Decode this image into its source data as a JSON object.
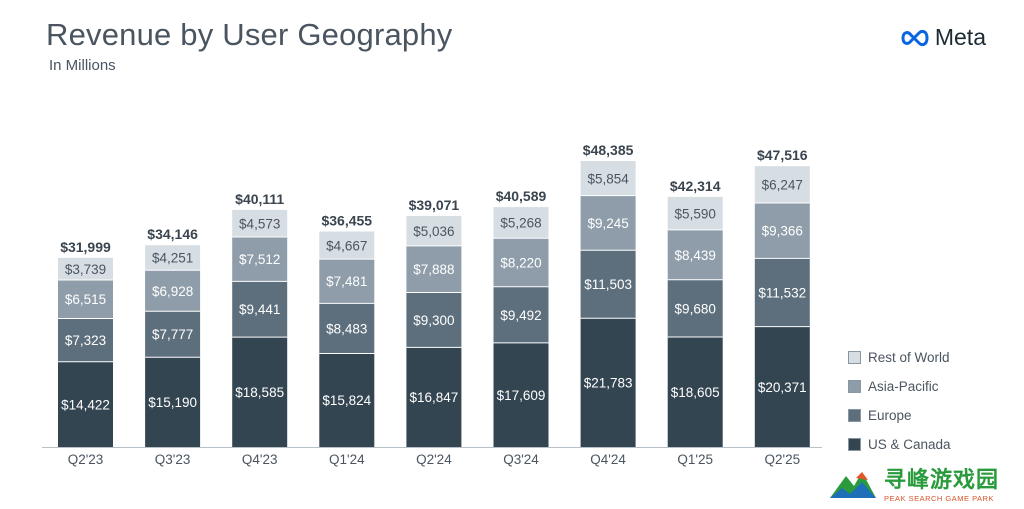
{
  "header": {
    "title": "Revenue by User Geography",
    "subtitle": "In Millions",
    "logo_text": "Meta"
  },
  "watermark": {
    "text": "寻峰游戏园",
    "subtext": "PEAK SEARCH GAME PARK"
  },
  "colors": {
    "us_canada": "#344552",
    "europe": "#5d6f7c",
    "asia_pacific": "#8e9da9",
    "rest_of_world": "#d7dee3",
    "text_dark": "#4a5560"
  },
  "legend": [
    {
      "label": "Rest of World",
      "color_key": "rest_of_world"
    },
    {
      "label": "Asia-Pacific",
      "color_key": "asia_pacific"
    },
    {
      "label": "Europe",
      "color_key": "europe"
    },
    {
      "label": "US & Canada",
      "color_key": "us_canada"
    }
  ],
  "chart_data": {
    "type": "bar",
    "stacked": true,
    "categories": [
      "Q2'23",
      "Q3'23",
      "Q4'23",
      "Q1'24",
      "Q2'24",
      "Q3'24",
      "Q4'24",
      "Q1'25",
      "Q2'25"
    ],
    "series": [
      {
        "name": "US & Canada",
        "values": [
          14422,
          15190,
          18585,
          15824,
          16847,
          17609,
          21783,
          18605,
          20371
        ]
      },
      {
        "name": "Europe",
        "values": [
          7323,
          7777,
          9441,
          8483,
          9300,
          9492,
          11503,
          9680,
          11532
        ]
      },
      {
        "name": "Asia-Pacific",
        "values": [
          6515,
          6928,
          7512,
          7481,
          7888,
          8220,
          9245,
          8439,
          9366
        ]
      },
      {
        "name": "Rest of World",
        "values": [
          3739,
          4251,
          4573,
          4667,
          5036,
          5268,
          5854,
          5590,
          6247
        ]
      }
    ],
    "totals": [
      31999,
      34146,
      40111,
      36455,
      39071,
      40589,
      48385,
      42314,
      47516
    ],
    "value_labels": [
      [
        "$14,422",
        "$15,190",
        "$18,585",
        "$15,824",
        "$16,847",
        "$17,609",
        "$21,783",
        "$18,605",
        "$20,371"
      ],
      [
        "$7,323",
        "$7,777",
        "$9,441",
        "$8,483",
        "$9,300",
        "$9,492",
        "$11,503",
        "$9,680",
        "$11,532"
      ],
      [
        "$6,515",
        "$6,928",
        "$7,512",
        "$7,481",
        "$7,888",
        "$8,220",
        "$9,245",
        "$8,439",
        "$9,366"
      ],
      [
        "$3,739",
        "$4,251",
        "$4,573",
        "$4,667",
        "$5,036",
        "$5,268",
        "$5,854",
        "$5,590",
        "$6,247"
      ]
    ],
    "total_labels": [
      "$31,999",
      "$34,146",
      "$40,111",
      "$36,455",
      "$39,071",
      "$40,589",
      "$48,385",
      "$42,314",
      "$47,516"
    ],
    "ylim": [
      0,
      48385
    ],
    "grid": false,
    "legend_position": "bottom-right"
  }
}
